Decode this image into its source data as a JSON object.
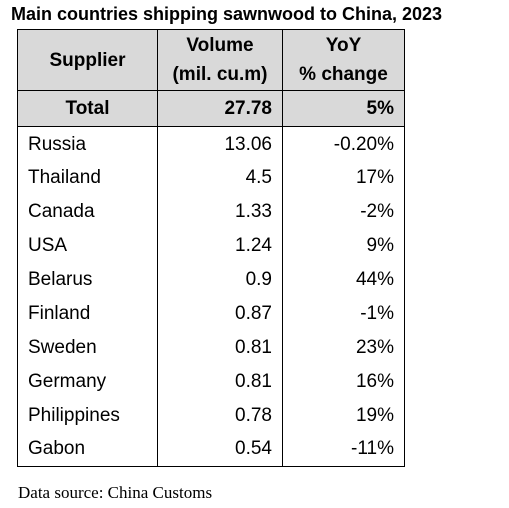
{
  "title": "Main countries shipping sawnwood to China, 2023",
  "headers": {
    "supplier": "Supplier",
    "volume_line1": "Volume",
    "volume_line2": "(mil. cu.m)",
    "yoy_line1": "YoY",
    "yoy_line2": "% change"
  },
  "total": {
    "label": "Total",
    "volume": "27.78",
    "yoy": "5%"
  },
  "rows": [
    {
      "supplier": "Russia",
      "volume": "13.06",
      "yoy": "-0.20%"
    },
    {
      "supplier": "Thailand",
      "volume": "4.5",
      "yoy": "17%"
    },
    {
      "supplier": "Canada",
      "volume": "1.33",
      "yoy": "-2%"
    },
    {
      "supplier": "USA",
      "volume": "1.24",
      "yoy": "9%"
    },
    {
      "supplier": "Belarus",
      "volume": "0.9",
      "yoy": "44%"
    },
    {
      "supplier": "Finland",
      "volume": "0.87",
      "yoy": "-1%"
    },
    {
      "supplier": "Sweden",
      "volume": "0.81",
      "yoy": "23%"
    },
    {
      "supplier": "Germany",
      "volume": "0.81",
      "yoy": "16%"
    },
    {
      "supplier": "Philippines",
      "volume": "0.78",
      "yoy": "19%"
    },
    {
      "supplier": "Gabon",
      "volume": "0.54",
      "yoy": "-11%"
    }
  ],
  "source": "Data source: China Customs"
}
